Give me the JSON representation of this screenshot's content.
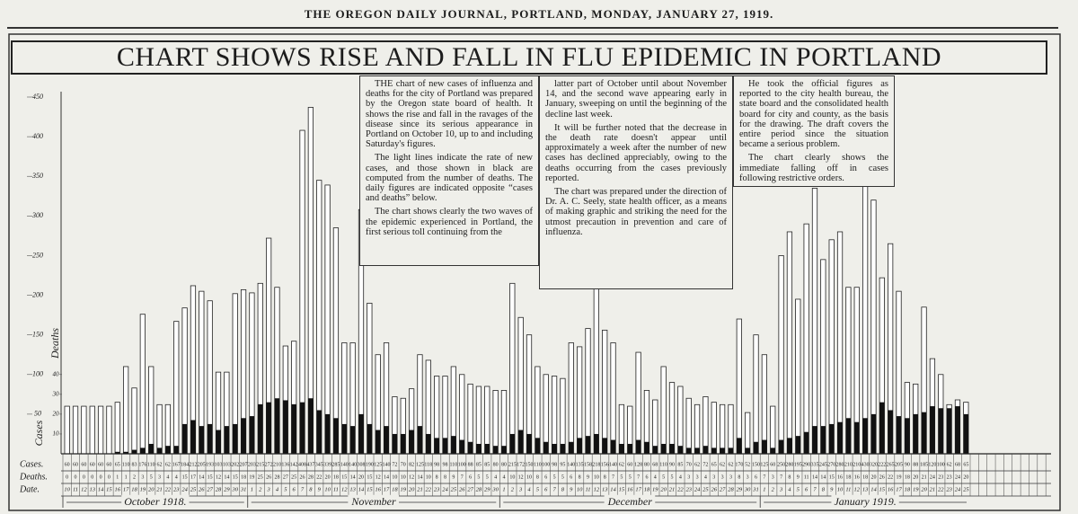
{
  "header": "THE OREGON DAILY JOURNAL, PORTLAND, MONDAY, JANUARY 27, 1919.",
  "headline": "CHART SHOWS RISE AND FALL IN FLU EPIDEMIC IN PORTLAND",
  "article": {
    "columns": [
      [
        "THE chart of new cases of influenza and deaths for the city of Portland was prepared by the Oregon state board of health. It shows the rise and fall in the ravages of the disease since its serious appearance in Portland on October 10, up to and including Saturday's figures.",
        "The light lines indicate the rate of new cases, and those shown in black are computed from the number of deaths. The daily figures are indicated opposite “cases and deaths” below.",
        "The chart shows clearly the two waves of the epidemic experienced in Portland, the first serious toll continuing from the"
      ],
      [
        "latter part of October until about November 14, and the second wave appearing early in January, sweeping on until the beginning of the decline last week.",
        "It will be further noted that the decrease in the death rate doesn't appear until approximately a week after the number of new cases has declined appreciably, owing to the deaths occurring from the cases previously reported.",
        "The chart was prepared under the direction of Dr. A. C. Seely, state health officer, as a means of making graphic and striking the need for the utmost precaution in prevention and care of influenza."
      ],
      [
        "He took the official figures as reported to the city health bureau, the state board and the consolidated health board for city and county, as the basis for the drawing. The draft covers the entire period since the situation became a serious problem.",
        "The chart clearly shows the immediate falling off in cases following restrictive orders."
      ]
    ]
  },
  "chart_data": {
    "type": "bar",
    "y_label": "Cases",
    "y2_label": "Deaths",
    "category_label": "Date.",
    "month_labels": [
      "October 1918.",
      "November",
      "December",
      "January 1919."
    ],
    "categories": [
      "10",
      "11",
      "12",
      "13",
      "14",
      "15",
      "16",
      "17",
      "18",
      "19",
      "20",
      "21",
      "22",
      "23",
      "24",
      "25",
      "26",
      "27",
      "28",
      "29",
      "30",
      "31",
      "1",
      "2",
      "3",
      "4",
      "5",
      "6",
      "7",
      "8",
      "9",
      "10",
      "11",
      "12",
      "13",
      "14",
      "15",
      "16",
      "17",
      "18",
      "19",
      "20",
      "21",
      "22",
      "23",
      "24",
      "25",
      "26",
      "27",
      "28",
      "29",
      "30",
      "1",
      "2",
      "3",
      "4",
      "5",
      "6",
      "7",
      "8",
      "9",
      "10",
      "11",
      "12",
      "13",
      "14",
      "15",
      "16",
      "17",
      "18",
      "19",
      "20",
      "21",
      "22",
      "23",
      "24",
      "25",
      "26",
      "27",
      "28",
      "29",
      "30",
      "31",
      "1",
      "2",
      "3",
      "4",
      "5",
      "6",
      "7",
      "8",
      "9",
      "10",
      "11",
      "12",
      "13",
      "14",
      "15",
      "16",
      "17",
      "18",
      "19",
      "20",
      "21",
      "22",
      "23",
      "24",
      "25"
    ],
    "series": [
      {
        "name": "Cases.",
        "color": "#ffffff",
        "values": [
          60,
          60,
          60,
          60,
          60,
          60,
          65,
          110,
          83,
          176,
          110,
          62,
          62,
          167,
          184,
          212,
          205,
          193,
          103,
          103,
          202,
          207,
          203,
          215,
          272,
          210,
          136,
          142,
          408,
          437,
          345,
          339,
          285,
          140,
          140,
          308,
          190,
          125,
          140,
          72,
          70,
          82,
          125,
          118,
          98,
          98,
          110,
          100,
          88,
          85,
          85,
          80,
          80,
          215,
          172,
          150,
          110,
          100,
          98,
          95,
          140,
          135,
          158,
          218,
          156,
          140,
          62,
          60,
          128,
          80,
          68,
          110,
          90,
          85,
          70,
          62,
          72,
          65,
          62,
          62,
          170,
          52,
          150,
          125,
          60,
          250,
          280,
          195,
          290,
          335,
          245,
          270,
          280,
          210,
          210,
          430,
          320,
          222,
          265,
          205,
          90,
          88,
          185,
          120,
          100,
          62,
          68,
          65
        ]
      },
      {
        "name": "Deaths.",
        "color": "#111111",
        "axis": "y2",
        "values": [
          0,
          0,
          0,
          0,
          0,
          0,
          1,
          1,
          2,
          3,
          5,
          3,
          4,
          4,
          15,
          17,
          14,
          15,
          12,
          14,
          15,
          18,
          19,
          25,
          26,
          28,
          27,
          25,
          26,
          28,
          22,
          20,
          18,
          15,
          14,
          20,
          15,
          12,
          14,
          10,
          10,
          12,
          14,
          10,
          8,
          8,
          9,
          7,
          6,
          5,
          5,
          4,
          4,
          10,
          12,
          10,
          8,
          6,
          5,
          5,
          6,
          8,
          9,
          10,
          8,
          7,
          5,
          5,
          7,
          6,
          4,
          5,
          5,
          4,
          3,
          3,
          4,
          3,
          3,
          3,
          8,
          3,
          6,
          7,
          3,
          7,
          8,
          9,
          11,
          14,
          14,
          15,
          16,
          18,
          16,
          18,
          20,
          26,
          22,
          19,
          18,
          20,
          21,
          24,
          23,
          23,
          24,
          20
        ]
      }
    ],
    "ylim": [
      0,
      450
    ],
    "yticks": [
      50,
      100,
      150,
      200,
      250,
      300,
      350,
      400,
      450
    ],
    "y2lim": [
      0,
      180
    ],
    "y2ticks": [
      10,
      20,
      30,
      40
    ]
  }
}
